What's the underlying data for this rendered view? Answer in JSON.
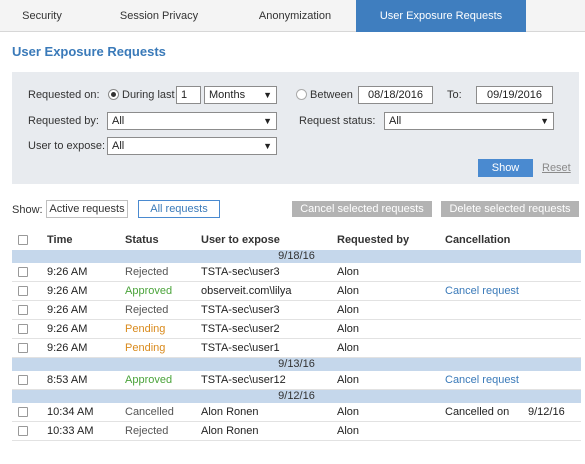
{
  "tabs": [
    "Security",
    "Session Privacy",
    "Anonymization",
    "User Exposure Requests"
  ],
  "title": "User Exposure Requests",
  "filters": {
    "requested_on_label": "Requested on:",
    "during_last_label": "During last",
    "during_last_value": "1",
    "period_value": "Months",
    "between_label": "Between",
    "from_date": "08/18/2016",
    "to_label": "To:",
    "to_date": "09/19/2016",
    "requested_by_label": "Requested by:",
    "requested_by_value": "All",
    "request_status_label": "Request status:",
    "request_status_value": "All",
    "user_to_expose_label": "User to expose:",
    "user_to_expose_value": "All",
    "show_button": "Show",
    "reset_link": "Reset"
  },
  "show_bar": {
    "label": "Show:",
    "active_requests": "Active requests",
    "all_requests": "All requests",
    "cancel_selected": "Cancel selected requests",
    "delete_selected": "Delete selected requests"
  },
  "table": {
    "headers": [
      "Time",
      "Status",
      "User to expose",
      "Requested by",
      "Cancellation"
    ],
    "groups": [
      {
        "date": "9/18/16",
        "rows": [
          {
            "time": "9:26 AM",
            "status": "Rejected",
            "user": "TSTA-sec\\user3",
            "by": "Alon",
            "cancel": "",
            "cancel_date": ""
          },
          {
            "time": "9:26 AM",
            "status": "Approved",
            "user": "observeit.com\\lilya",
            "by": "Alon",
            "cancel": "Cancel request",
            "cancel_date": ""
          },
          {
            "time": "9:26 AM",
            "status": "Rejected",
            "user": "TSTA-sec\\user3",
            "by": "Alon",
            "cancel": "",
            "cancel_date": ""
          },
          {
            "time": "9:26 AM",
            "status": "Pending",
            "user": "TSTA-sec\\user2",
            "by": "Alon",
            "cancel": "",
            "cancel_date": ""
          },
          {
            "time": "9:26 AM",
            "status": "Pending",
            "user": "TSTA-sec\\user1",
            "by": "Alon",
            "cancel": "",
            "cancel_date": ""
          }
        ]
      },
      {
        "date": "9/13/16",
        "rows": [
          {
            "time": "8:53 AM",
            "status": "Approved",
            "user": "TSTA-sec\\user12",
            "by": "Alon",
            "cancel": "Cancel request",
            "cancel_date": ""
          }
        ]
      },
      {
        "date": "9/12/16",
        "rows": [
          {
            "time": "10:34 AM",
            "status": "Cancelled",
            "user": "Alon Ronen",
            "by": "Alon",
            "cancel": "Cancelled on",
            "cancel_date": "9/12/16"
          },
          {
            "time": "10:33 AM",
            "status": "Rejected",
            "user": "Alon Ronen",
            "by": "Alon",
            "cancel": "",
            "cancel_date": ""
          }
        ]
      }
    ]
  },
  "colors": {
    "accent": "#3f7ebf",
    "approved": "#4aa33a",
    "pending": "#d98a1c",
    "neutral": "#555555"
  }
}
